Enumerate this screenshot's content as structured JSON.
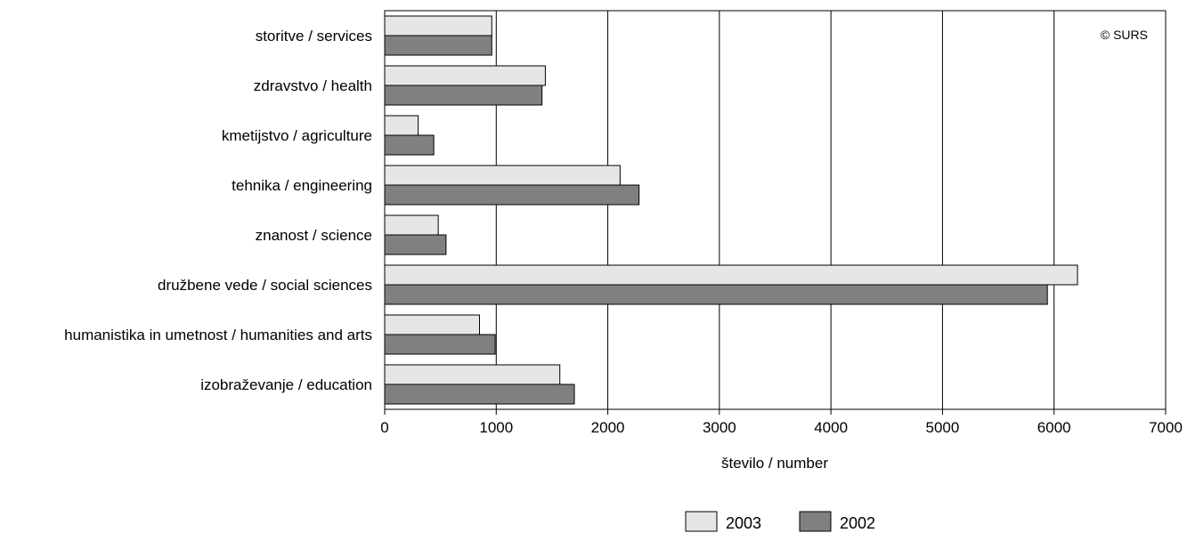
{
  "chart_data": {
    "type": "bar",
    "orientation": "horizontal",
    "categories": [
      "storitve / services",
      "zdravstvo / health",
      "kmetijstvo / agriculture",
      "tehnika / engineering",
      "znanost / science",
      "družbene vede / social sciences",
      "humanistika in umetnost / humanities and arts",
      "izobraževanje / education"
    ],
    "series": [
      {
        "name": "2003",
        "color": "#e6e6e6",
        "values": [
          960,
          1440,
          300,
          2110,
          480,
          6210,
          850,
          1570
        ]
      },
      {
        "name": "2002",
        "color": "#808080",
        "values": [
          960,
          1410,
          440,
          2280,
          550,
          5940,
          990,
          1700
        ]
      }
    ],
    "xlabel": "število / number",
    "ylabel": "",
    "xlim": [
      0,
      7000
    ],
    "xticks": [
      0,
      1000,
      2000,
      3000,
      4000,
      5000,
      6000,
      7000
    ],
    "grid": "vertical",
    "legend_position": "bottom-center",
    "credit": "© SURS"
  }
}
